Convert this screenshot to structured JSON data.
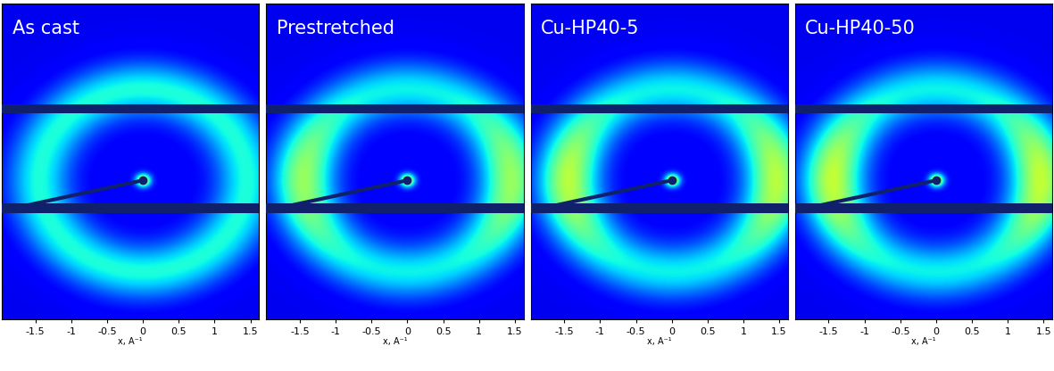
{
  "chart_data": [
    {
      "type": "image",
      "title": "As cast",
      "x_label": "x, A⁻¹",
      "xlim": [
        -1.97,
        1.62
      ],
      "ylim": [
        -2.2,
        2.8
      ],
      "xticks": [
        -1.5,
        -1,
        -0.5,
        0,
        0.5,
        1,
        1.5
      ],
      "tick_labels": "x",
      "ring": {
        "q": 1.45,
        "width": 0.3,
        "background": 0.1,
        "peak_intensity": 0.28,
        "equatorial_excess": 0.0
      }
    },
    {
      "type": "image",
      "title": "Prestretched",
      "x_label": "x, A⁻¹",
      "xlim": [
        -1.97,
        1.62
      ],
      "ylim": [
        -2.2,
        2.8
      ],
      "xticks": [
        -1.5,
        -1,
        -0.5,
        0,
        0.5,
        1,
        1.5
      ],
      "tick_labels": "x",
      "ring": {
        "q": 1.45,
        "width": 0.3,
        "background": 0.1,
        "peak_intensity": 0.26,
        "equatorial_excess": 0.65
      }
    },
    {
      "type": "image",
      "title": "Cu-HP40-5",
      "x_label": "x, A⁻¹",
      "xlim": [
        -1.97,
        1.62
      ],
      "ylim": [
        -2.2,
        2.8
      ],
      "xticks": [
        -1.5,
        -1,
        -0.5,
        0,
        0.5,
        1,
        1.5
      ],
      "tick_labels": "x",
      "ring": {
        "q": 1.45,
        "width": 0.3,
        "background": 0.1,
        "peak_intensity": 0.26,
        "equatorial_excess": 0.8
      }
    },
    {
      "type": "image",
      "title": "Cu-HP40-50",
      "x_label": "x, A⁻¹",
      "xlim": [
        -1.97,
        1.62
      ],
      "ylim": [
        -2.2,
        2.8
      ],
      "xticks": [
        -1.5,
        -1,
        -0.5,
        0,
        0.5,
        1,
        1.5
      ],
      "tick_labels": "x",
      "ring": {
        "q": 1.45,
        "width": 0.3,
        "background": 0.1,
        "peak_intensity": 0.26,
        "equatorial_excess": 0.85
      }
    }
  ]
}
